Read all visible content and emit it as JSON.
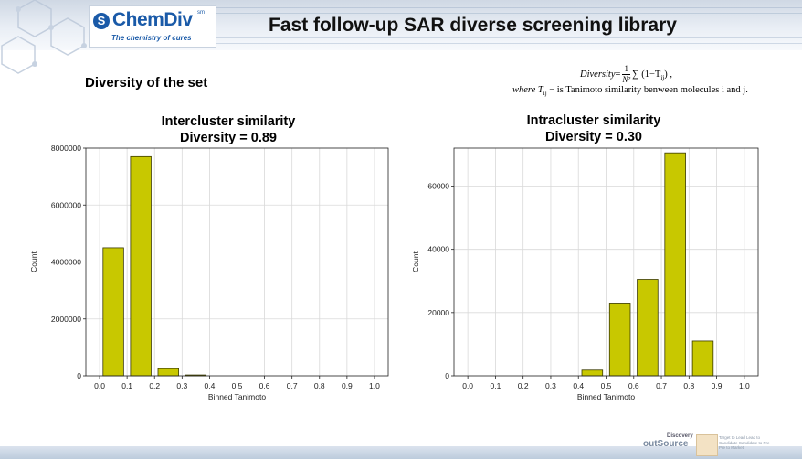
{
  "header": {
    "logo_name": "ChemDiv",
    "logo_trademark": "sm",
    "logo_tagline": "The chemistry of cures",
    "title": "Fast follow-up SAR diverse screening library"
  },
  "section_title": "Diversity of the set",
  "formula": {
    "lhs": "Diversity",
    "equals": "=",
    "numerator": "1",
    "denominator": "N²",
    "rhs": "∑ (1−T",
    "rhs_sub": "ij",
    "rhs_tail": ") ,",
    "where": "where T",
    "where_sub": "ij",
    "where_text": " − is Tanimoto similarity benween molecules i and j."
  },
  "footer": {
    "logo_small": "Discovery",
    "logo_big": "outSource",
    "note": "Target to Lead Lead to Candidate Candidate to Pre Pre to Market"
  },
  "colors": {
    "bar_fill": "#c8c800",
    "bar_edge": "#3a3a00",
    "grid": "#d9d9d9",
    "axis": "#000000"
  },
  "chart_data": [
    {
      "type": "bar",
      "title": "Intercluster similarity",
      "subtitle": "Diversity = 0.89",
      "xlabel": "Binned Tanimoto",
      "ylabel": "Count",
      "xlim": [
        -0.05,
        1.05
      ],
      "ylim": [
        0,
        8000000
      ],
      "xticks": [
        "0.0",
        "0.1",
        "0.2",
        "0.3",
        "0.4",
        "0.5",
        "0.6",
        "0.7",
        "0.8",
        "0.9",
        "1.0"
      ],
      "yticks": [
        "0",
        "2000000",
        "4000000",
        "6000000",
        "8000000"
      ],
      "ytick_values": [
        0,
        2000000,
        4000000,
        6000000,
        8000000
      ],
      "bin_width": 0.075,
      "x": [
        0.05,
        0.15,
        0.25,
        0.35
      ],
      "values": [
        4500000,
        7700000,
        250000,
        30000
      ],
      "grid": true
    },
    {
      "type": "bar",
      "title": "Intracluster similarity",
      "subtitle": "Diversity = 0.30",
      "xlabel": "Binned Tanimoto",
      "ylabel": "Count",
      "xlim": [
        -0.05,
        1.05
      ],
      "ylim": [
        0,
        72000
      ],
      "xticks": [
        "0.0",
        "0.1",
        "0.2",
        "0.3",
        "0.4",
        "0.5",
        "0.6",
        "0.7",
        "0.8",
        "0.9",
        "1.0"
      ],
      "yticks": [
        "0",
        "20000",
        "40000",
        "60000"
      ],
      "ytick_values": [
        0,
        20000,
        40000,
        60000
      ],
      "bin_width": 0.075,
      "x": [
        0.45,
        0.55,
        0.65,
        0.75,
        0.85
      ],
      "values": [
        1800,
        23000,
        30500,
        70500,
        11000
      ],
      "grid": true
    }
  ]
}
